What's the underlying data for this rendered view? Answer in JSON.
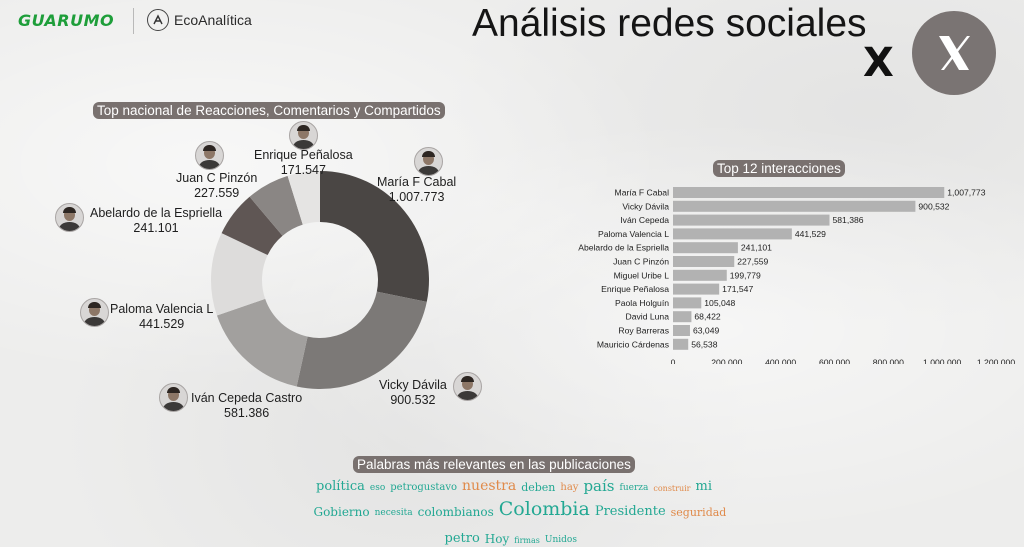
{
  "header": {
    "logo_guarumo": "GUARUMO",
    "logo_eco": "EcoAnalítica",
    "title": "Análisis redes sociales",
    "x_letter": "X"
  },
  "donut_title": "Top nacional de Reacciones, Comentarios y Compartidos",
  "bar_title": "Top 12 interacciones",
  "words_title": "Palabras más relevantes en las publicaciones",
  "colors": {
    "pill": "#79716f",
    "bar": "#b2b2b2",
    "donut": [
      "#4a4644",
      "#7c7977",
      "#a2a09e",
      "#dddcdb",
      "#5f5654",
      "#8a8684",
      "#e5e4e3"
    ],
    "word_teal": "#23a893",
    "word_orange": "#e08a4a"
  },
  "chart_data": [
    {
      "type": "pie",
      "title": "Top nacional de Reacciones, Comentarios y Compartidos",
      "categories": [
        "María F Cabal",
        "Vicky Dávila",
        "Iván Cepeda Castro",
        "Paloma Valencia L",
        "Abelardo de la Espriella",
        "Juan C Pinzón",
        "Enrique Peñalosa"
      ],
      "values": [
        1007773,
        900532,
        581386,
        441529,
        241101,
        227559,
        171547
      ],
      "value_labels": [
        "1.007.773",
        "900.532",
        "581.386",
        "441.529",
        "241.101",
        "227.559",
        "171.547"
      ],
      "donut": true
    },
    {
      "type": "bar",
      "orientation": "horizontal",
      "title": "Top 12 interacciones",
      "categories": [
        "María F Cabal",
        "Vicky Dávila",
        "Iván Cepeda",
        "Paloma Valencia L",
        "Abelardo de la Espriella",
        "Juan C Pinzón",
        "Miguel Uribe L",
        "Enrique Peñalosa",
        "Paola Holguín",
        "David Luna",
        "Roy Barreras",
        "Mauricio Cárdenas"
      ],
      "values": [
        1007773,
        900532,
        581386,
        441529,
        241101,
        227559,
        199779,
        171547,
        105048,
        68422,
        63049,
        56538
      ],
      "value_labels": [
        "1,007,773",
        "900,532",
        "581,386",
        "441,529",
        "241,101",
        "227,559",
        "199,779",
        "171,547",
        "105,048",
        "68,422",
        "63,049",
        "56,538"
      ],
      "xlim": [
        0,
        1200000
      ],
      "xticks": [
        "0",
        "200,000",
        "400,000",
        "600,000",
        "800,000",
        "1,000,000",
        "1,200,000"
      ],
      "grid": false
    }
  ],
  "word_cloud": {
    "rows": [
      [
        {
          "text": "política",
          "size": 13,
          "color": "teal"
        },
        {
          "text": "eso",
          "size": 9,
          "color": "teal"
        },
        {
          "text": "petrogustavo",
          "size": 10,
          "color": "teal"
        },
        {
          "text": "nuestra",
          "size": 14,
          "color": "orange"
        },
        {
          "text": "deben",
          "size": 11,
          "color": "teal"
        },
        {
          "text": "hay",
          "size": 10,
          "color": "orange"
        },
        {
          "text": "país",
          "size": 15,
          "color": "teal"
        },
        {
          "text": "fuerza",
          "size": 9,
          "color": "teal"
        },
        {
          "text": "construir",
          "size": 8,
          "color": "orange"
        },
        {
          "text": "mi",
          "size": 13,
          "color": "teal"
        }
      ],
      [
        {
          "text": "Gobierno",
          "size": 12,
          "color": "teal"
        },
        {
          "text": "necesita",
          "size": 9,
          "color": "teal"
        },
        {
          "text": "colombianos",
          "size": 12,
          "color": "teal"
        },
        {
          "text": "Colombia",
          "size": 19,
          "color": "teal"
        },
        {
          "text": "Presidente",
          "size": 13,
          "color": "teal"
        },
        {
          "text": "seguridad",
          "size": 11,
          "color": "orange"
        }
      ],
      [
        {
          "text": "petro",
          "size": 13,
          "color": "teal"
        },
        {
          "text": "Hoy",
          "size": 12,
          "color": "teal"
        },
        {
          "text": "firmas",
          "size": 8,
          "color": "teal"
        },
        {
          "text": "Unidos",
          "size": 9,
          "color": "teal"
        }
      ]
    ]
  }
}
